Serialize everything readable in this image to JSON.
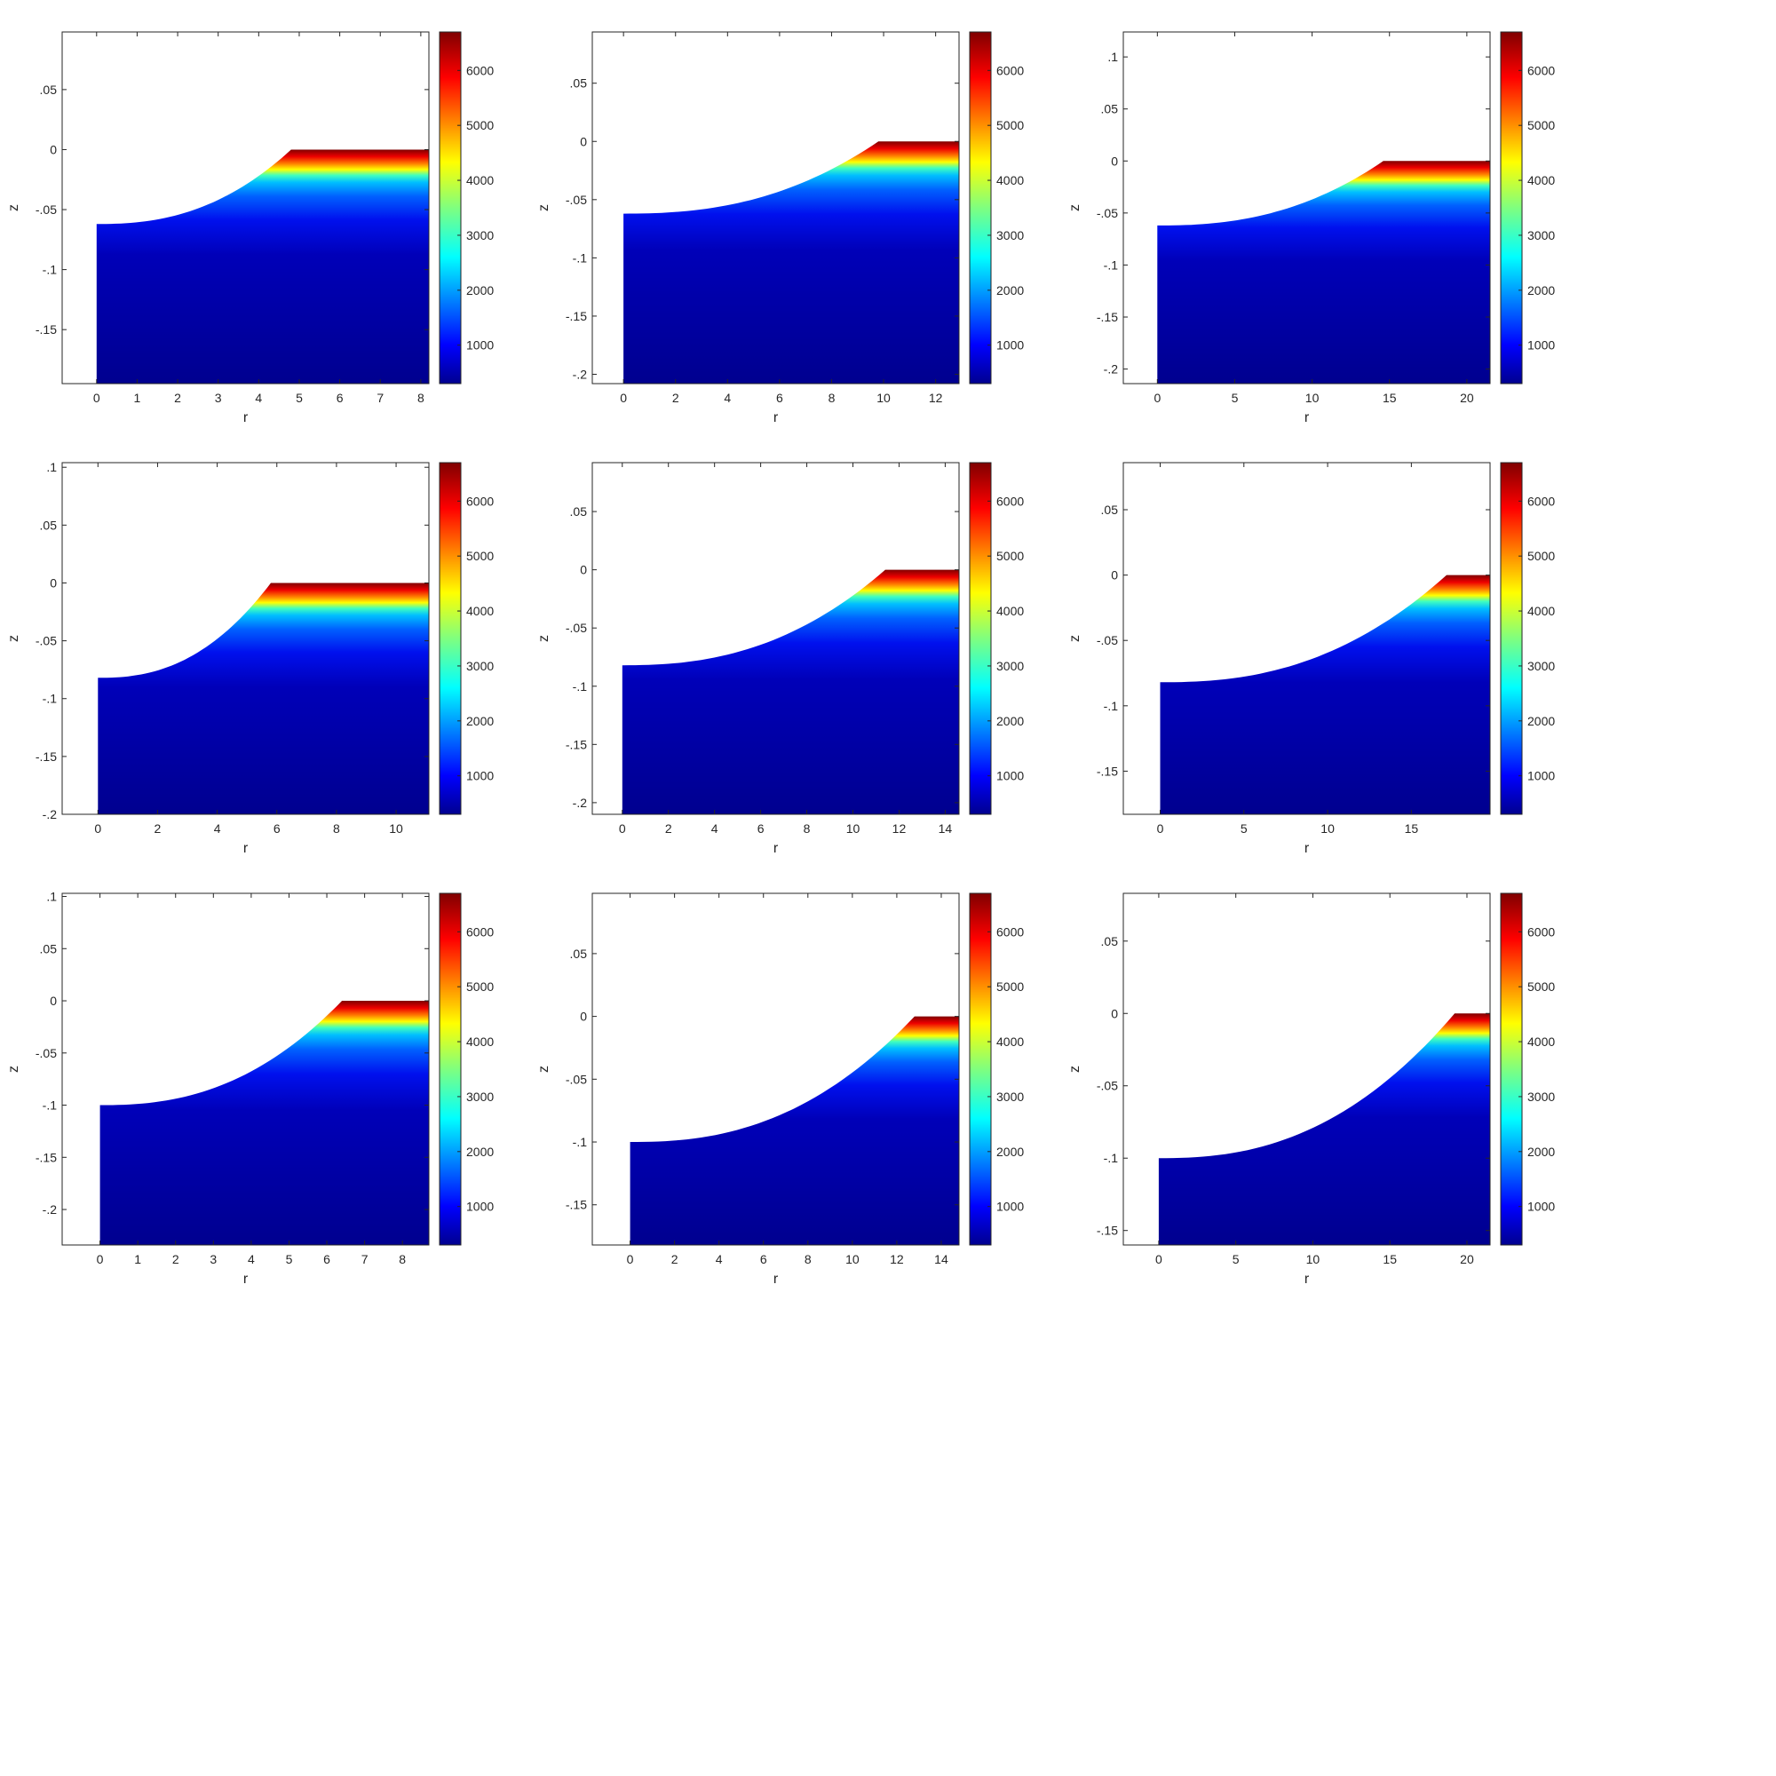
{
  "colorbar": {
    "ticks": [
      1000,
      2000,
      3000,
      4000,
      5000,
      6000
    ],
    "range": [
      300,
      6700
    ],
    "colormap": "jet"
  },
  "chart_data": [
    {
      "type": "heatmap",
      "xlabel": "r",
      "ylabel": "z",
      "xlim": [
        -0.85,
        8.2
      ],
      "ylim": [
        -0.195,
        0.098
      ],
      "xticks": [
        0,
        1,
        2,
        3,
        4,
        5,
        6,
        7,
        8
      ],
      "yticks": [
        -0.15,
        -0.1,
        -0.05,
        0,
        0.05
      ],
      "surface": {
        "r_end": 4.8,
        "z_bottom": -0.062
      }
    },
    {
      "type": "heatmap",
      "xlabel": "r",
      "ylabel": "z",
      "xlim": [
        -1.2,
        12.9
      ],
      "ylim": [
        -0.208,
        0.094
      ],
      "xticks": [
        0,
        2,
        4,
        6,
        8,
        10,
        12
      ],
      "yticks": [
        -0.2,
        -0.15,
        -0.1,
        -0.05,
        0,
        0.05
      ],
      "surface": {
        "r_end": 9.8,
        "z_bottom": -0.062
      }
    },
    {
      "type": "heatmap",
      "xlabel": "r",
      "ylabel": "z",
      "xlim": [
        -2.2,
        21.5
      ],
      "ylim": [
        -0.214,
        0.124
      ],
      "xticks": [
        0,
        5,
        10,
        15,
        20
      ],
      "yticks": [
        -0.2,
        -0.15,
        -0.1,
        -0.05,
        0,
        0.05,
        0.1
      ],
      "surface": {
        "r_end": 14.6,
        "z_bottom": -0.062
      }
    },
    {
      "type": "heatmap",
      "xlabel": "r",
      "ylabel": "z",
      "xlim": [
        -1.2,
        11.1
      ],
      "ylim": [
        -0.2,
        0.104
      ],
      "xticks": [
        0,
        2,
        4,
        6,
        8,
        10
      ],
      "yticks": [
        -0.2,
        -0.15,
        -0.1,
        -0.05,
        0,
        0.05,
        0.1
      ],
      "surface": {
        "r_end": 5.8,
        "z_bottom": -0.082
      }
    },
    {
      "type": "heatmap",
      "xlabel": "r",
      "ylabel": "z",
      "xlim": [
        -1.3,
        14.6
      ],
      "ylim": [
        -0.21,
        0.092
      ],
      "xticks": [
        0,
        2,
        4,
        6,
        8,
        10,
        12,
        14
      ],
      "yticks": [
        -0.2,
        -0.15,
        -0.1,
        -0.05,
        0,
        0.05
      ],
      "surface": {
        "r_end": 11.4,
        "z_bottom": -0.082
      }
    },
    {
      "type": "heatmap",
      "xlabel": "r",
      "ylabel": "z",
      "xlim": [
        -2.2,
        19.7
      ],
      "ylim": [
        -0.183,
        0.086
      ],
      "xticks": [
        0,
        5,
        10,
        15
      ],
      "yticks": [
        -0.15,
        -0.1,
        -0.05,
        0,
        0.05
      ],
      "surface": {
        "r_end": 17.1,
        "z_bottom": -0.082
      }
    },
    {
      "type": "heatmap",
      "xlabel": "r",
      "ylabel": "z",
      "xlim": [
        -1.0,
        8.7
      ],
      "ylim": [
        -0.234,
        0.103
      ],
      "xticks": [
        0,
        1,
        2,
        3,
        4,
        5,
        6,
        7,
        8
      ],
      "yticks": [
        -0.2,
        -0.15,
        -0.1,
        -0.05,
        0,
        0.05,
        0.1
      ],
      "surface": {
        "r_end": 6.4,
        "z_bottom": -0.1
      }
    },
    {
      "type": "heatmap",
      "xlabel": "r",
      "ylabel": "z",
      "xlim": [
        -1.7,
        14.8
      ],
      "ylim": [
        -0.182,
        0.098
      ],
      "xticks": [
        0,
        2,
        4,
        6,
        8,
        10,
        12,
        14
      ],
      "yticks": [
        -0.15,
        -0.1,
        -0.05,
        0,
        0.05
      ],
      "surface": {
        "r_end": 12.8,
        "z_bottom": -0.1
      }
    },
    {
      "type": "heatmap",
      "xlabel": "r",
      "ylabel": "z",
      "xlim": [
        -2.3,
        21.5
      ],
      "ylim": [
        -0.16,
        0.083
      ],
      "xticks": [
        0,
        5,
        10,
        15,
        20
      ],
      "yticks": [
        -0.15,
        -0.1,
        -0.05,
        0,
        0.05
      ],
      "surface": {
        "r_end": 19.2,
        "z_bottom": -0.1
      }
    }
  ]
}
